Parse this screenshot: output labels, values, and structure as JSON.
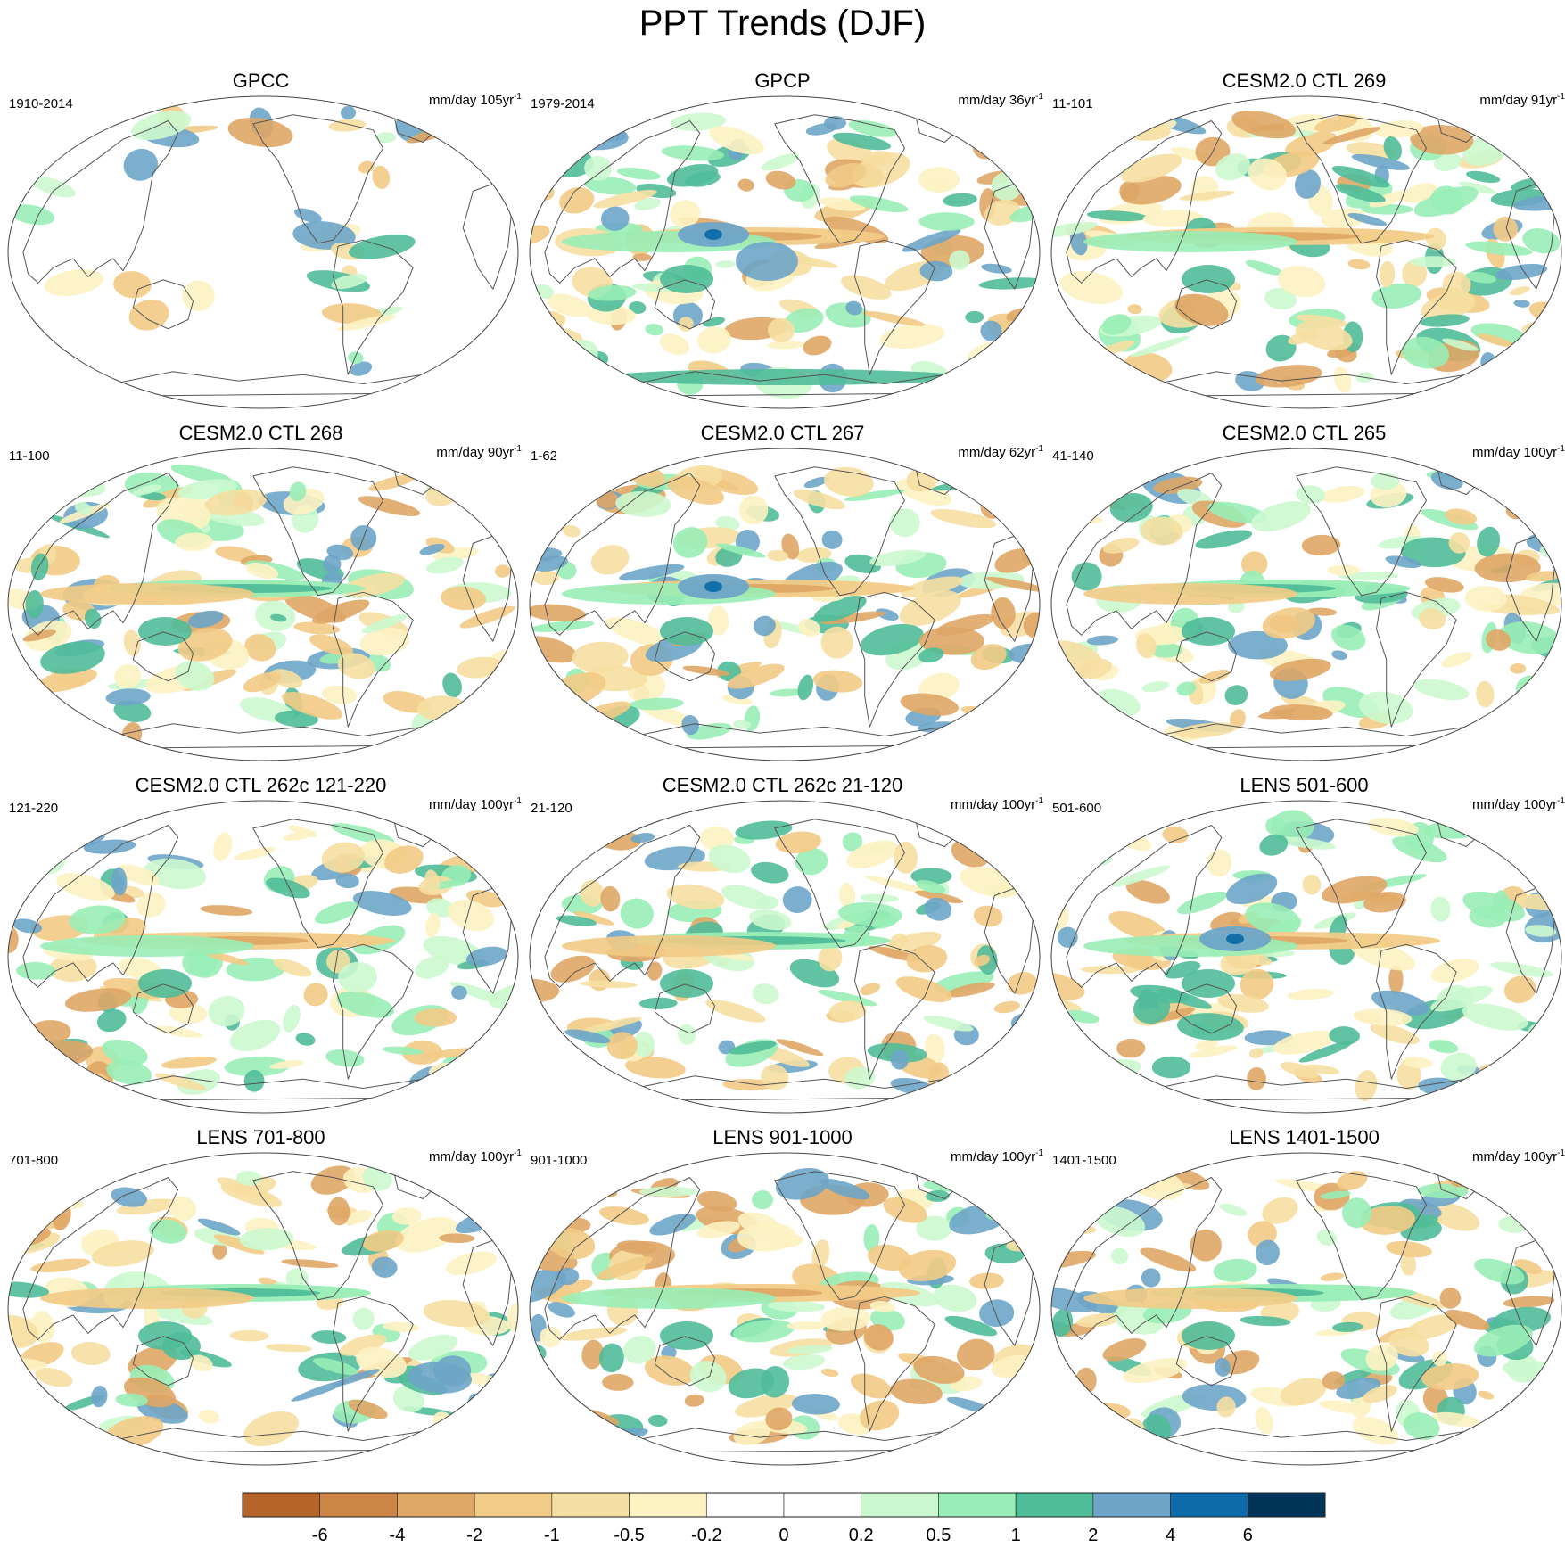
{
  "title": "PPT Trends (DJF)",
  "colors": {
    "neg6": "#b5652a",
    "neg4": "#cd8645",
    "neg2": "#dfa666",
    "neg1": "#f2cb86",
    "neg05": "#f6dfa2",
    "neg02": "#fdf2c2",
    "zero": "#ffffff",
    "pos02": "#ccf8cf",
    "pos05": "#99edb6",
    "pos1": "#50bd99",
    "pos2": "#6ea5c8",
    "pos4": "#0e6ba9",
    "pos6": "#003458",
    "coast": "#555555",
    "border": "#444444"
  },
  "panels": [
    {
      "title": "GPCC",
      "period": "1910-2014",
      "units": "mm/day 105yr",
      "unit_exp": "-1"
    },
    {
      "title": "GPCP",
      "period": "1979-2014",
      "units": "mm/day 36yr",
      "unit_exp": "-1"
    },
    {
      "title": "CESM2.0 CTL 269",
      "period": "11-101",
      "units": "mm/day 91yr",
      "unit_exp": "-1"
    },
    {
      "title": "CESM2.0 CTL 268",
      "period": "11-100",
      "units": "mm/day 90yr",
      "unit_exp": "-1"
    },
    {
      "title": "CESM2.0 CTL 267",
      "period": "1-62",
      "units": "mm/day 62yr",
      "unit_exp": "-1"
    },
    {
      "title": "CESM2.0 CTL 265",
      "period": "41-140",
      "units": "mm/day 100yr",
      "unit_exp": "-1"
    },
    {
      "title": "CESM2.0 CTL 262c 121-220",
      "period": "121-220",
      "units": "mm/day 100yr",
      "unit_exp": "-1"
    },
    {
      "title": "CESM2.0 CTL 262c 21-120",
      "period": "21-120",
      "units": "mm/day 100yr",
      "unit_exp": "-1"
    },
    {
      "title": "LENS 501-600",
      "period": "501-600",
      "units": "mm/day 100yr",
      "unit_exp": "-1"
    },
    {
      "title": "LENS 701-800",
      "period": "701-800",
      "units": "mm/day 100yr",
      "unit_exp": "-1"
    },
    {
      "title": "LENS 901-1000",
      "period": "901-1000",
      "units": "mm/day 100yr",
      "unit_exp": "-1"
    },
    {
      "title": "LENS 1401-1500",
      "period": "1401-1500",
      "units": "mm/day 100yr",
      "unit_exp": "-1"
    }
  ],
  "colorbar": {
    "labels": [
      "-6",
      "-4",
      "-2",
      "-1",
      "-0.5",
      "-0.2",
      "0",
      "0.2",
      "0.5",
      "1",
      "2",
      "4",
      "6"
    ],
    "bins": [
      "neg6",
      "neg4",
      "neg2",
      "neg1",
      "neg05",
      "neg02",
      "zero",
      "zero",
      "pos02",
      "pos05",
      "pos1",
      "pos2",
      "pos4",
      "pos6"
    ]
  }
}
